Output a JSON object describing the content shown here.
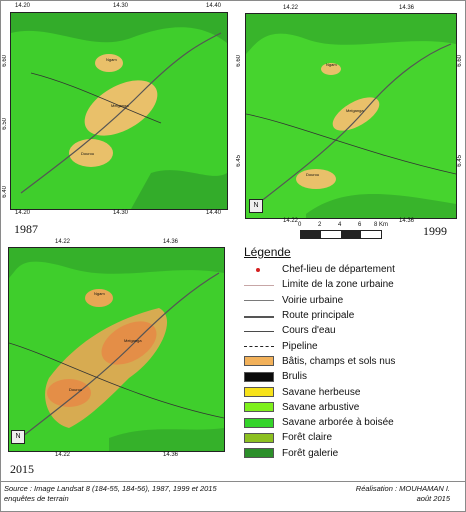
{
  "maps": [
    {
      "year": "1987",
      "ticks_top": [
        "14.20",
        "14.30",
        "14.40"
      ],
      "ticks_bottom": [
        "14.20",
        "14.30",
        "14.40"
      ],
      "ticks_left": [
        "6.60",
        "6.50",
        "6.40"
      ]
    },
    {
      "year": "1999",
      "ticks_top": [
        "14.22",
        "14.36"
      ],
      "ticks_bottom": [
        "14.22",
        "14.36"
      ],
      "ticks_left": [
        "6.60",
        "6.45"
      ],
      "ticks_right": [
        "6.60",
        "6.45"
      ]
    },
    {
      "year": "2015",
      "ticks_top": [
        "14.22",
        "14.36"
      ],
      "ticks_bottom": [
        "14.22",
        "14.36"
      ]
    }
  ],
  "scale": {
    "labels": [
      "0",
      "2",
      "4",
      "6",
      "8 Km"
    ]
  },
  "legend": {
    "title": "Légende",
    "items": [
      {
        "label": "Chef-lieu de département",
        "symbol": "dot",
        "color": "#d42020"
      },
      {
        "label": "Limite de la zone urbaine",
        "symbol": "line",
        "color": "#c7a6a6"
      },
      {
        "label": "Voirie urbaine",
        "symbol": "line",
        "color": "#7a7a7a"
      },
      {
        "label": "Route principale",
        "symbol": "thickline",
        "color": "#555555"
      },
      {
        "label": "Cours d'eau",
        "symbol": "line",
        "color": "#4a4a4a"
      },
      {
        "label": "Pipeline",
        "symbol": "dash",
        "color": "#222222"
      },
      {
        "label": "Bâtis, champs et sols nus",
        "symbol": "box",
        "color": "#f2b15a"
      },
      {
        "label": "Brulis",
        "symbol": "box",
        "color": "#0a0a0a"
      },
      {
        "label": "Savane herbeuse",
        "symbol": "box",
        "color": "#f7e21a"
      },
      {
        "label": "Savane arbustive",
        "symbol": "box",
        "color": "#7ef01c"
      },
      {
        "label": "Savane arborée à boisée",
        "symbol": "box",
        "color": "#34d42a"
      },
      {
        "label": "Forêt claire",
        "symbol": "box",
        "color": "#8cc020"
      },
      {
        "label": "Forêt galerie",
        "symbol": "box",
        "color": "#2c8f2a"
      }
    ]
  },
  "footer": {
    "source_line1": "Source : Image  Landsat 8 (184-55, 184-56), 1987, 1999 et 2015",
    "source_line2": "enquêtes de terrain",
    "credit_line1": "Réalisation : MOUHAMAN I.",
    "credit_line2": "août 2015"
  }
}
